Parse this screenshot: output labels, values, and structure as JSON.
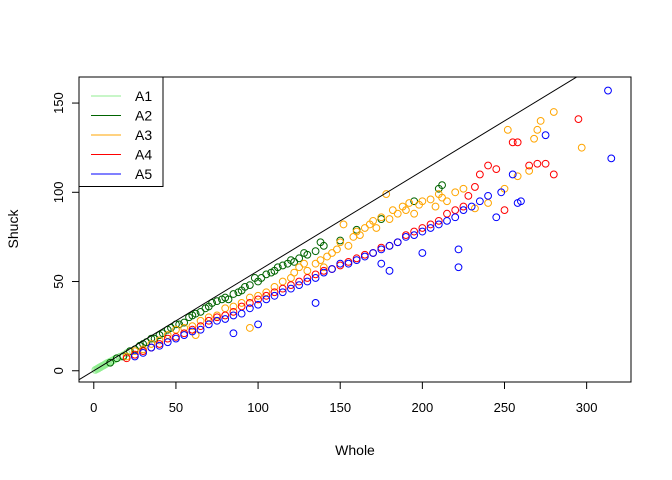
{
  "chart_data": {
    "type": "scatter",
    "title": "",
    "xlabel": "Whole",
    "ylabel": "Shuck",
    "xlim": [
      -9,
      327
    ],
    "ylim": [
      -6.3,
      164.6
    ],
    "xticks": [
      0,
      50,
      100,
      150,
      200,
      250,
      300
    ],
    "yticks": [
      0,
      50,
      100,
      150
    ],
    "grid": false,
    "legend_position": "top-left",
    "reference_line": {
      "intercept": 0,
      "slope": 0.56
    },
    "series": [
      {
        "name": "A1",
        "color": "#90EE90",
        "points": [
          [
            1,
            0.5
          ],
          [
            2,
            1
          ],
          [
            2.5,
            1.2
          ],
          [
            3,
            1.5
          ],
          [
            3.5,
            1.8
          ],
          [
            4,
            2
          ],
          [
            4.5,
            2.3
          ],
          [
            5,
            2.6
          ],
          [
            5.5,
            2.8
          ],
          [
            6,
            3
          ],
          [
            6.5,
            3.3
          ],
          [
            7,
            3.6
          ],
          [
            7.5,
            3.9
          ],
          [
            8,
            4.2
          ],
          [
            9,
            4.6
          ],
          [
            10,
            5
          ],
          [
            11,
            5.5
          ],
          [
            12,
            6
          ],
          [
            13,
            6.6
          ],
          [
            14,
            7
          ],
          [
            16,
            7.8
          ],
          [
            18,
            8.6
          ],
          [
            20,
            9.8
          ],
          [
            22,
            10.5
          ]
        ]
      },
      {
        "name": "A2",
        "color": "#006400",
        "points": [
          [
            10,
            4.5
          ],
          [
            14,
            7
          ],
          [
            18,
            8
          ],
          [
            22,
            11
          ],
          [
            25,
            12
          ],
          [
            28,
            14
          ],
          [
            30,
            15
          ],
          [
            32,
            16
          ],
          [
            35,
            18
          ],
          [
            37,
            18
          ],
          [
            40,
            20
          ],
          [
            42,
            21
          ],
          [
            45,
            23
          ],
          [
            47,
            24
          ],
          [
            50,
            26
          ],
          [
            52,
            26
          ],
          [
            55,
            27
          ],
          [
            58,
            30
          ],
          [
            60,
            31
          ],
          [
            62,
            32
          ],
          [
            65,
            33
          ],
          [
            68,
            35
          ],
          [
            70,
            36
          ],
          [
            72,
            38
          ],
          [
            75,
            39
          ],
          [
            78,
            40
          ],
          [
            80,
            41
          ],
          [
            82,
            40
          ],
          [
            85,
            43
          ],
          [
            88,
            44
          ],
          [
            90,
            45
          ],
          [
            92,
            47
          ],
          [
            95,
            48
          ],
          [
            98,
            52
          ],
          [
            100,
            50
          ],
          [
            102,
            52
          ],
          [
            105,
            54
          ],
          [
            108,
            55
          ],
          [
            110,
            56
          ],
          [
            112,
            58
          ],
          [
            115,
            59
          ],
          [
            118,
            60
          ],
          [
            120,
            62
          ],
          [
            122,
            61
          ],
          [
            125,
            63
          ],
          [
            128,
            66
          ],
          [
            130,
            65
          ],
          [
            135,
            67
          ],
          [
            138,
            72
          ],
          [
            140,
            70
          ],
          [
            150,
            73
          ],
          [
            160,
            79
          ],
          [
            175,
            85
          ],
          [
            195,
            95
          ],
          [
            210,
            102
          ],
          [
            212,
            104
          ]
        ]
      },
      {
        "name": "A3",
        "color": "#FFA500",
        "points": [
          [
            20,
            8
          ],
          [
            25,
            11
          ],
          [
            30,
            12
          ],
          [
            35,
            15
          ],
          [
            40,
            17
          ],
          [
            45,
            20
          ],
          [
            50,
            23
          ],
          [
            55,
            24
          ],
          [
            60,
            25
          ],
          [
            62,
            20
          ],
          [
            65,
            28
          ],
          [
            70,
            30
          ],
          [
            75,
            31
          ],
          [
            80,
            35
          ],
          [
            85,
            36
          ],
          [
            90,
            38
          ],
          [
            95,
            24
          ],
          [
            95,
            41
          ],
          [
            100,
            42
          ],
          [
            105,
            44
          ],
          [
            110,
            47
          ],
          [
            115,
            50
          ],
          [
            120,
            52
          ],
          [
            122,
            55
          ],
          [
            125,
            58
          ],
          [
            128,
            60
          ],
          [
            130,
            56
          ],
          [
            135,
            60
          ],
          [
            138,
            62
          ],
          [
            140,
            58
          ],
          [
            142,
            64
          ],
          [
            145,
            66
          ],
          [
            148,
            68
          ],
          [
            150,
            72
          ],
          [
            152,
            82
          ],
          [
            155,
            70
          ],
          [
            158,
            75
          ],
          [
            160,
            78
          ],
          [
            162,
            76
          ],
          [
            165,
            80
          ],
          [
            168,
            82
          ],
          [
            170,
            84
          ],
          [
            172,
            80
          ],
          [
            175,
            86
          ],
          [
            178,
            99
          ],
          [
            180,
            85
          ],
          [
            182,
            90
          ],
          [
            185,
            88
          ],
          [
            188,
            92
          ],
          [
            190,
            90
          ],
          [
            192,
            94
          ],
          [
            195,
            88
          ],
          [
            198,
            93
          ],
          [
            200,
            95
          ],
          [
            205,
            96
          ],
          [
            208,
            92
          ],
          [
            210,
            99
          ],
          [
            212,
            97
          ],
          [
            215,
            95
          ],
          [
            220,
            100
          ],
          [
            225,
            102
          ],
          [
            232,
            91
          ],
          [
            240,
            94
          ],
          [
            250,
            102
          ],
          [
            252,
            135
          ],
          [
            258,
            109
          ],
          [
            265,
            112
          ],
          [
            268,
            130
          ],
          [
            270,
            135
          ],
          [
            272,
            140
          ],
          [
            280,
            145
          ],
          [
            297,
            125
          ]
        ]
      },
      {
        "name": "A4",
        "color": "#FF0000",
        "points": [
          [
            20,
            7
          ],
          [
            25,
            9
          ],
          [
            30,
            11
          ],
          [
            35,
            13
          ],
          [
            40,
            15
          ],
          [
            45,
            18
          ],
          [
            50,
            19
          ],
          [
            55,
            21
          ],
          [
            60,
            23
          ],
          [
            65,
            25
          ],
          [
            70,
            28
          ],
          [
            75,
            30
          ],
          [
            80,
            31
          ],
          [
            85,
            33
          ],
          [
            90,
            36
          ],
          [
            95,
            38
          ],
          [
            100,
            40
          ],
          [
            105,
            42
          ],
          [
            110,
            44
          ],
          [
            115,
            46
          ],
          [
            120,
            48
          ],
          [
            125,
            50
          ],
          [
            130,
            52
          ],
          [
            135,
            54
          ],
          [
            140,
            56
          ],
          [
            145,
            57
          ],
          [
            150,
            59
          ],
          [
            155,
            61
          ],
          [
            160,
            63
          ],
          [
            165,
            65
          ],
          [
            170,
            66
          ],
          [
            175,
            69
          ],
          [
            180,
            70
          ],
          [
            185,
            72
          ],
          [
            190,
            76
          ],
          [
            195,
            78
          ],
          [
            200,
            80
          ],
          [
            205,
            82
          ],
          [
            210,
            84
          ],
          [
            215,
            88
          ],
          [
            220,
            90
          ],
          [
            225,
            92
          ],
          [
            228,
            98
          ],
          [
            232,
            103
          ],
          [
            235,
            110
          ],
          [
            240,
            115
          ],
          [
            245,
            113
          ],
          [
            250,
            90
          ],
          [
            255,
            128
          ],
          [
            258,
            128
          ],
          [
            265,
            115
          ],
          [
            270,
            116
          ],
          [
            275,
            116
          ],
          [
            280,
            110
          ],
          [
            295,
            141
          ]
        ]
      },
      {
        "name": "A5",
        "color": "#0000FF",
        "points": [
          [
            25,
            8
          ],
          [
            30,
            10
          ],
          [
            35,
            13
          ],
          [
            40,
            14
          ],
          [
            45,
            16
          ],
          [
            50,
            18
          ],
          [
            55,
            20
          ],
          [
            60,
            22
          ],
          [
            65,
            23
          ],
          [
            70,
            26
          ],
          [
            75,
            28
          ],
          [
            80,
            29
          ],
          [
            85,
            21
          ],
          [
            85,
            31
          ],
          [
            90,
            32
          ],
          [
            95,
            35
          ],
          [
            100,
            26
          ],
          [
            100,
            37
          ],
          [
            105,
            40
          ],
          [
            110,
            42
          ],
          [
            115,
            44
          ],
          [
            120,
            46
          ],
          [
            125,
            48
          ],
          [
            130,
            50
          ],
          [
            135,
            38
          ],
          [
            135,
            52
          ],
          [
            140,
            55
          ],
          [
            145,
            57
          ],
          [
            150,
            60
          ],
          [
            155,
            60
          ],
          [
            160,
            62
          ],
          [
            165,
            64
          ],
          [
            170,
            66
          ],
          [
            175,
            60
          ],
          [
            175,
            68
          ],
          [
            180,
            56
          ],
          [
            180,
            70
          ],
          [
            185,
            72
          ],
          [
            190,
            75
          ],
          [
            195,
            76
          ],
          [
            200,
            66
          ],
          [
            200,
            78
          ],
          [
            205,
            80
          ],
          [
            210,
            82
          ],
          [
            215,
            84
          ],
          [
            220,
            86
          ],
          [
            222,
            58
          ],
          [
            222,
            68
          ],
          [
            225,
            90
          ],
          [
            230,
            92
          ],
          [
            235,
            95
          ],
          [
            240,
            98
          ],
          [
            245,
            86
          ],
          [
            248,
            100
          ],
          [
            255,
            110
          ],
          [
            258,
            94
          ],
          [
            260,
            95
          ],
          [
            275,
            132
          ],
          [
            313,
            157
          ],
          [
            315,
            119
          ]
        ]
      }
    ]
  }
}
